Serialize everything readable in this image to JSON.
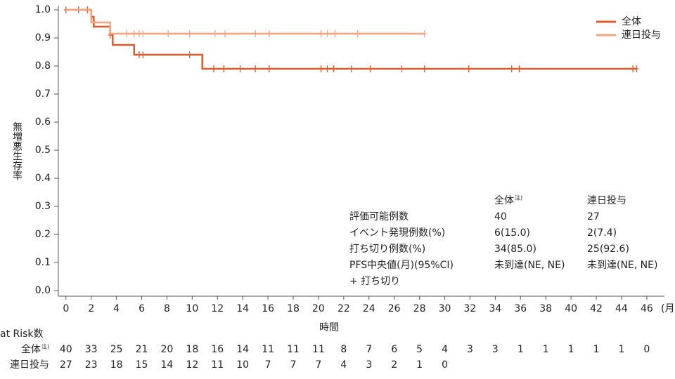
{
  "chart_data": {
    "type": "step",
    "y_label": "無増悪生存率",
    "x_label": "時間",
    "x_unit": "(月)",
    "xlim": [
      -0.6,
      47.4
    ],
    "ylim": [
      -0.02,
      1.01
    ],
    "xticks": [
      0,
      2,
      4,
      6,
      8,
      10,
      12,
      14,
      16,
      18,
      20,
      22,
      24,
      26,
      28,
      30,
      32,
      34,
      36,
      38,
      40,
      42,
      44,
      46
    ],
    "yticks": [
      {
        "value": 0,
        "label": "0.0"
      },
      0.1,
      0.2,
      0.3,
      0.4,
      0.5,
      0.6,
      0.7,
      0.8,
      0.9,
      {
        "value": 1,
        "label": "1.0"
      }
    ],
    "legend": "top-right",
    "series": [
      {
        "name": "全体",
        "color": "#e05a2b",
        "x": [
          0,
          2,
          2.2,
          3.5,
          3.7,
          5.4,
          10.8,
          45.2
        ],
        "values": [
          1,
          0.975,
          0.94,
          0.91,
          0.875,
          0.84,
          0.79,
          0.79
        ],
        "censored": {
          "x": [
            0,
            1,
            1.7,
            3.5,
            5.8,
            6.1,
            9.8,
            11.7,
            12.5,
            13.8,
            15,
            16.1,
            20.2,
            20.7,
            21.2,
            22.6,
            24.1,
            26.6,
            28.4,
            31.9,
            35.3,
            35.9,
            44.9,
            45.2
          ],
          "values": [
            1,
            1,
            1,
            0.91,
            0.84,
            0.84,
            0.84,
            0.79,
            0.79,
            0.79,
            0.79,
            0.79,
            0.79,
            0.79,
            0.79,
            0.79,
            0.79,
            0.79,
            0.79,
            0.79,
            0.79,
            0.79,
            0.79,
            0.79
          ]
        }
      },
      {
        "name": "連日投与",
        "color": "#f3a582",
        "x": [
          0,
          2,
          3.5,
          28.4
        ],
        "values": [
          1,
          0.955,
          0.915,
          0.915
        ],
        "censored": {
          "x": [
            3.5,
            4.8,
            5.4,
            5.8,
            6.1,
            8.1,
            9.8,
            11.8,
            12.6,
            15,
            16.1,
            20.2,
            20.7,
            21.3,
            23.1,
            28.4
          ],
          "values": [
            0.915,
            0.915,
            0.915,
            0.915,
            0.915,
            0.915,
            0.915,
            0.915,
            0.915,
            0.915,
            0.915,
            0.915,
            0.915,
            0.915,
            0.915,
            0.915
          ]
        }
      }
    ],
    "summary_table": {
      "header": [
        {
          "text": "全体",
          "note": "注)"
        },
        {
          "text": "連日投与"
        }
      ],
      "rows": [
        [
          "評価可能例数",
          "40",
          "27"
        ],
        [
          "イベント発現例数(%)",
          "6(15.0)",
          "2(7.4)"
        ],
        [
          "打ち切り例数(%)",
          "34(85.0)",
          "25(92.6)"
        ],
        [
          "PFS中央値(月)(95%CI)",
          "未到達(NE, NE)",
          "未到達(NE, NE)"
        ]
      ],
      "censor_legend": "+ 打ち切り"
    },
    "at_risk": {
      "title": "at Risk数",
      "rows": [
        {
          "label": "全体",
          "note": "注)",
          "values": [
            40,
            33,
            25,
            21,
            20,
            18,
            16,
            14,
            11,
            11,
            11,
            8,
            7,
            6,
            5,
            4,
            3,
            3,
            1,
            1,
            1,
            1,
            1,
            0
          ]
        },
        {
          "label": "連日投与",
          "values": [
            27,
            23,
            18,
            15,
            14,
            12,
            11,
            10,
            7,
            7,
            7,
            4,
            3,
            2,
            1,
            0
          ]
        }
      ]
    }
  }
}
